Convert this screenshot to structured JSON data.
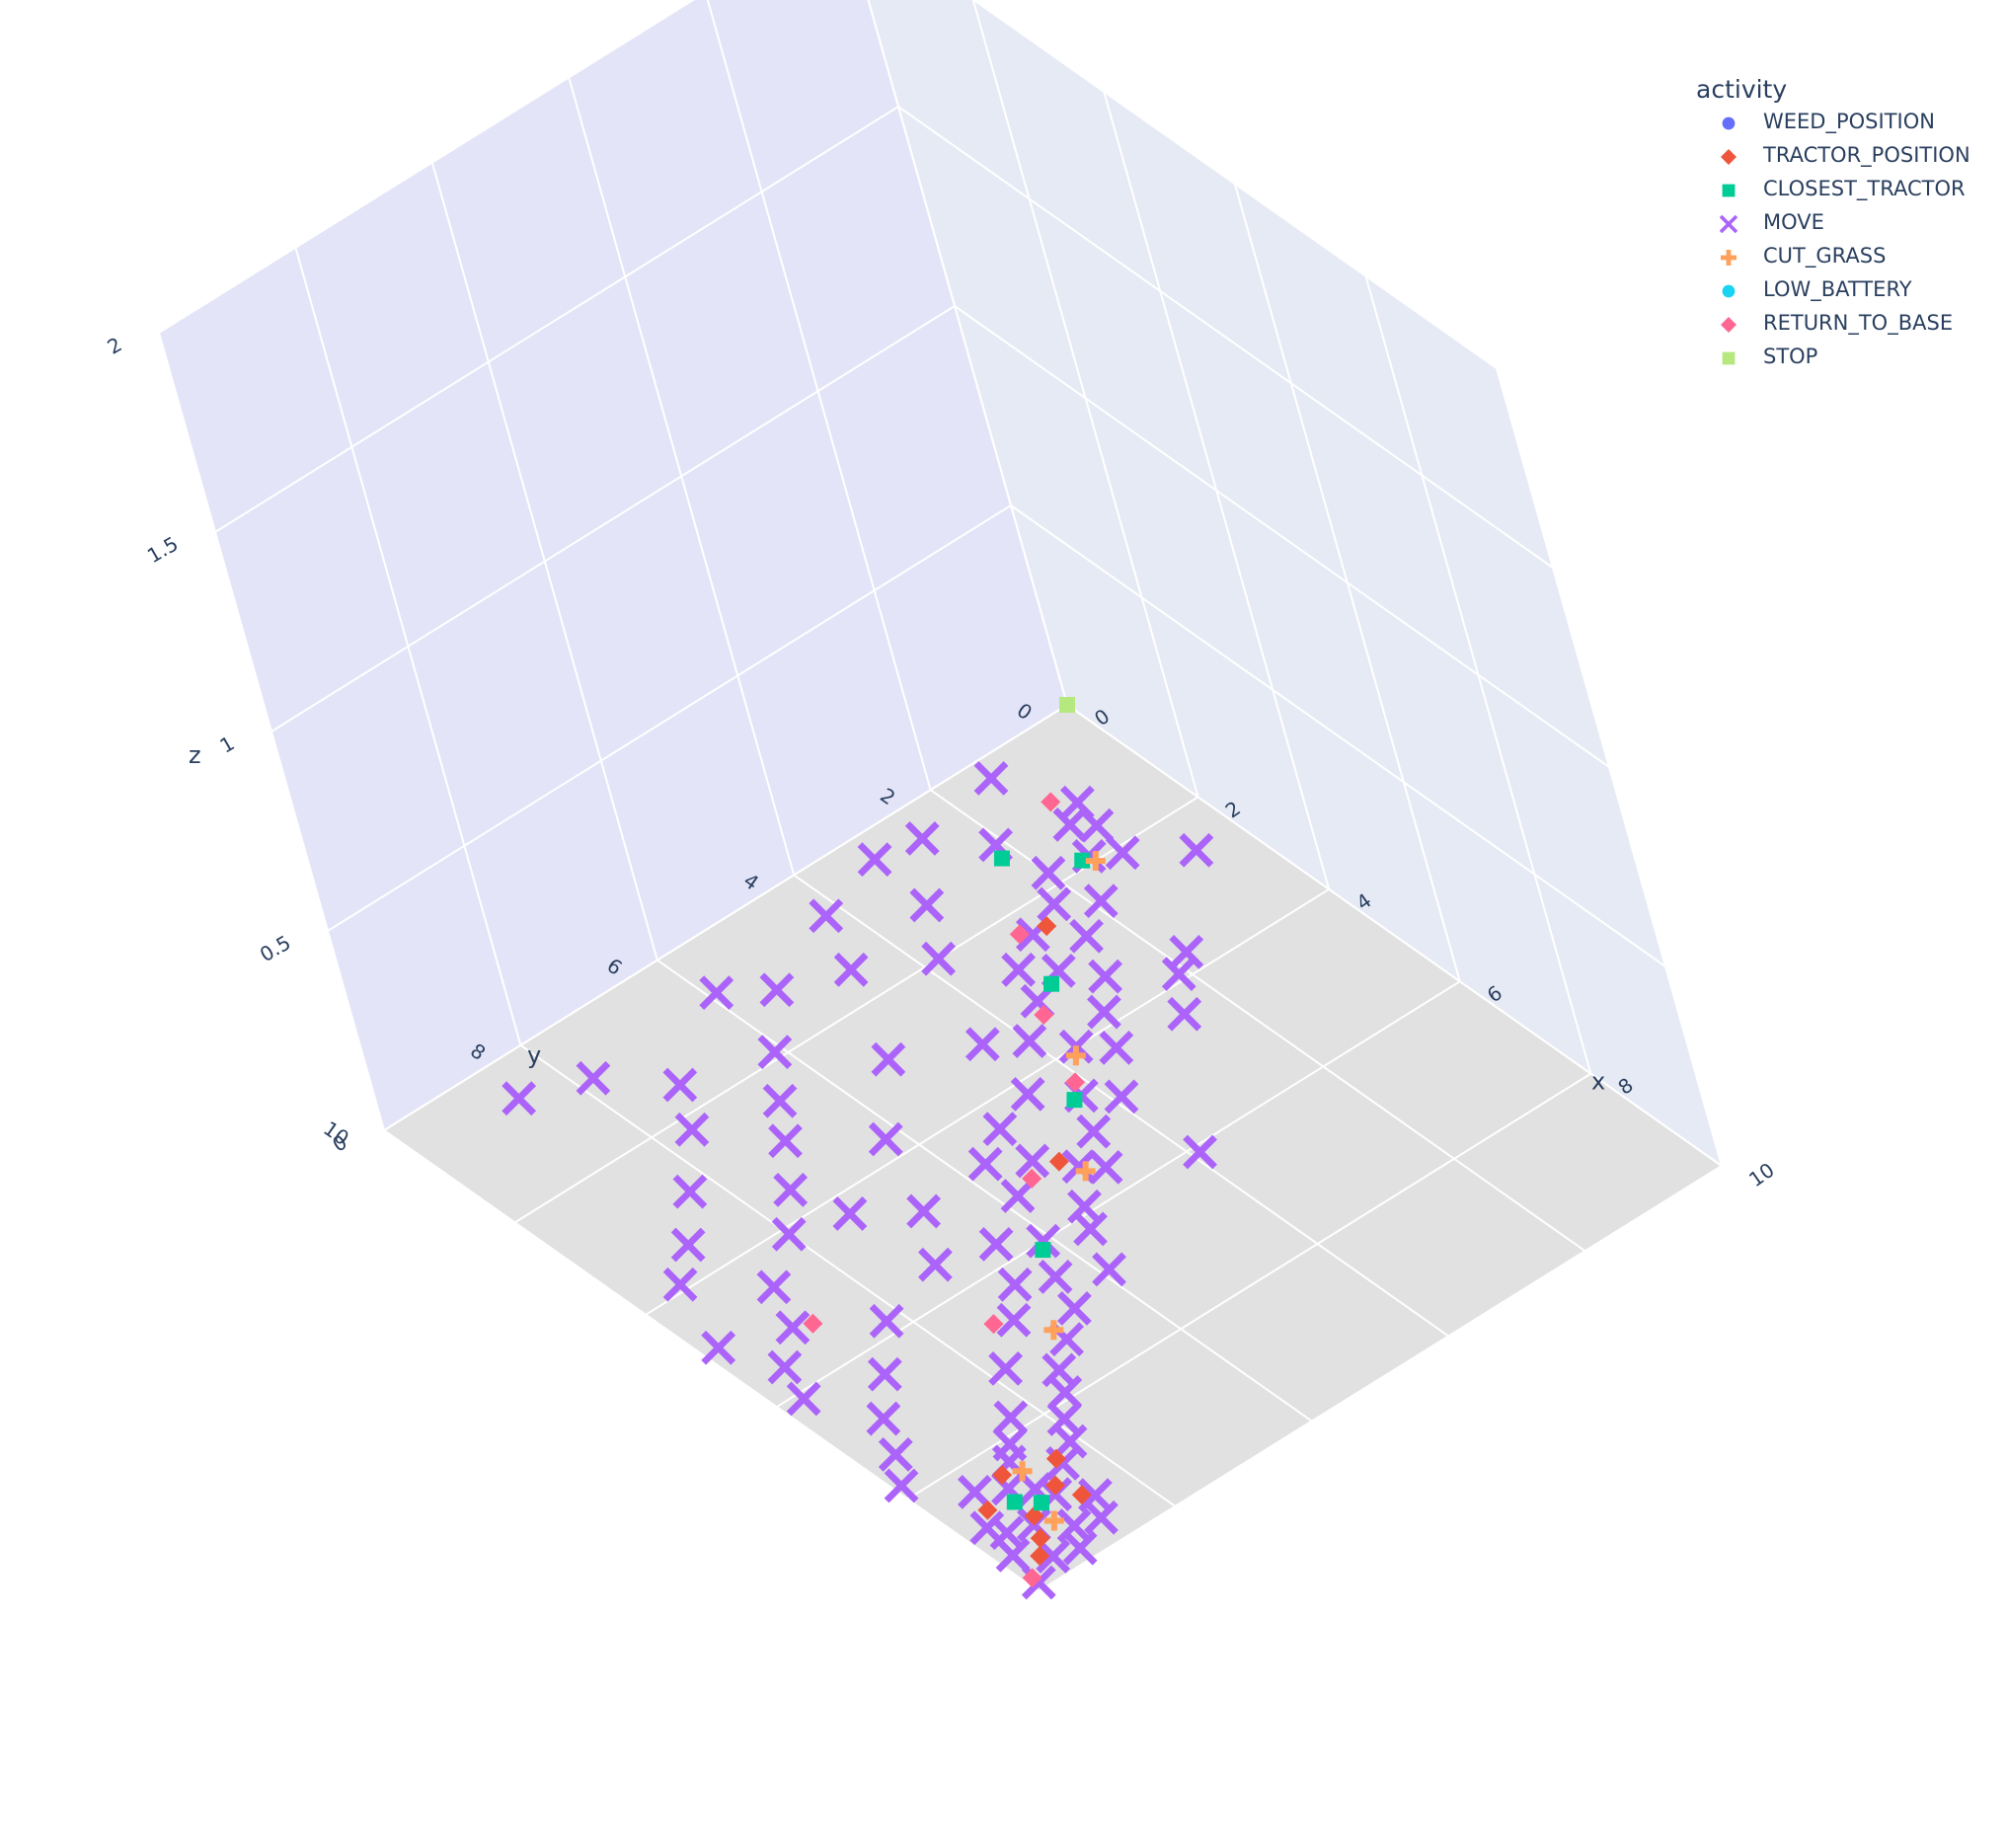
{
  "chart_data": {
    "type": "scatter3d",
    "axes": {
      "x": {
        "title": "x",
        "range": [
          0,
          10
        ],
        "ticks": [
          "0",
          "2",
          "4",
          "6",
          "8",
          "10"
        ]
      },
      "y": {
        "title": "y",
        "range": [
          0,
          10
        ],
        "ticks": [
          "0",
          "2",
          "4",
          "6",
          "8",
          "10"
        ]
      },
      "z": {
        "title": "z",
        "range": [
          0,
          2
        ],
        "ticks": [
          "0",
          "0.5",
          "1",
          "1.5",
          "2"
        ]
      }
    },
    "legend": {
      "title": "activity",
      "placement": "top-right",
      "items": [
        {
          "label": "WEED_POSITION",
          "color": "#636efa",
          "symbol": "circle"
        },
        {
          "label": "TRACTOR_POSITION",
          "color": "#EF553B",
          "symbol": "diamond"
        },
        {
          "label": "CLOSEST_TRACTOR",
          "color": "#00cc96",
          "symbol": "square"
        },
        {
          "label": "MOVE",
          "color": "#ab63fa",
          "symbol": "x"
        },
        {
          "label": "CUT_GRASS",
          "color": "#FFA15A",
          "symbol": "cross"
        },
        {
          "label": "LOW_BATTERY",
          "color": "#19d3f3",
          "symbol": "circle"
        },
        {
          "label": "RETURN_TO_BASE",
          "color": "#FF6692",
          "symbol": "diamond"
        },
        {
          "label": "STOP",
          "color": "#B6E880",
          "symbol": "square"
        }
      ]
    },
    "series": [
      {
        "name": "MOVE",
        "color": "#ab63fa",
        "points": [
          [
            1.2,
            1.0,
            0
          ],
          [
            1.4,
            1.3,
            0
          ],
          [
            1.6,
            1.1,
            0
          ],
          [
            1.9,
            1.5,
            0
          ],
          [
            2.1,
            1.2,
            0
          ],
          [
            1.8,
            2.0,
            0
          ],
          [
            2.2,
            2.3,
            0
          ],
          [
            2.5,
            1.9,
            0
          ],
          [
            2.8,
            2.4,
            0
          ],
          [
            2.4,
            2.8,
            0
          ],
          [
            1.1,
            2.1,
            0
          ],
          [
            3.0,
            3.0,
            0
          ],
          [
            3.4,
            2.7,
            0
          ],
          [
            3.2,
            3.5,
            0
          ],
          [
            2.7,
            3.3,
            0
          ],
          [
            3.8,
            3.1,
            0
          ],
          [
            4.0,
            3.7,
            0
          ],
          [
            3.6,
            4.0,
            0
          ],
          [
            4.3,
            3.4,
            0
          ],
          [
            4.6,
            4.2,
            0
          ],
          [
            4.2,
            4.6,
            0
          ],
          [
            3.3,
            4.4,
            0
          ],
          [
            4.9,
            3.9,
            0
          ],
          [
            2.0,
            3.8,
            0
          ],
          [
            5.1,
            4.5,
            0
          ],
          [
            5.4,
            5.0,
            0
          ],
          [
            5.0,
            5.3,
            0
          ],
          [
            4.7,
            5.7,
            0
          ],
          [
            5.6,
            4.8,
            0
          ],
          [
            5.9,
            5.4,
            0
          ],
          [
            5.3,
            5.8,
            0
          ],
          [
            4.4,
            5.2,
            0
          ],
          [
            6.2,
            5.6,
            0
          ],
          [
            6.0,
            6.1,
            0
          ],
          [
            6.5,
            6.4,
            0
          ],
          [
            6.8,
            5.9,
            0
          ],
          [
            6.3,
            6.8,
            0
          ],
          [
            5.7,
            6.5,
            0
          ],
          [
            7.0,
            6.6,
            0
          ],
          [
            6.7,
            7.2,
            0
          ],
          [
            7.3,
            7.0,
            0
          ],
          [
            7.6,
            7.4,
            0
          ],
          [
            7.2,
            7.8,
            0
          ],
          [
            7.9,
            7.6,
            0
          ],
          [
            8.2,
            7.9,
            0
          ],
          [
            7.8,
            8.3,
            0
          ],
          [
            8.5,
            8.1,
            0
          ],
          [
            8.1,
            8.6,
            0
          ],
          [
            8.7,
            8.4,
            0
          ],
          [
            9.0,
            8.8,
            0
          ],
          [
            8.6,
            9.1,
            0
          ],
          [
            9.2,
            9.3,
            0
          ],
          [
            9.5,
            9.0,
            0
          ],
          [
            9.1,
            9.6,
            0
          ],
          [
            9.7,
            9.5,
            0
          ],
          [
            9.4,
            9.8,
            0
          ],
          [
            8.9,
            9.7,
            0
          ],
          [
            9.8,
            9.2,
            0
          ],
          [
            8.4,
            9.4,
            0
          ],
          [
            9.3,
            8.5,
            0
          ],
          [
            8.8,
            8.9,
            0
          ],
          [
            9.6,
            8.7,
            0
          ],
          [
            8.3,
            8.8,
            0
          ],
          [
            9.9,
            9.9,
            0
          ],
          [
            1.5,
            4.6,
            0
          ],
          [
            1.2,
            5.4,
            0
          ],
          [
            0.8,
            5.9,
            0
          ],
          [
            1.9,
            6.1,
            0
          ],
          [
            2.5,
            6.6,
            0
          ],
          [
            3.0,
            7.0,
            0
          ],
          [
            3.6,
            7.5,
            0
          ],
          [
            4.1,
            8.0,
            0
          ],
          [
            2.2,
            7.6,
            0
          ],
          [
            1.6,
            7.2,
            0
          ],
          [
            0.9,
            7.8,
            0
          ],
          [
            0.6,
            8.6,
            0
          ],
          [
            2.9,
            8.3,
            0
          ],
          [
            3.5,
            8.9,
            0
          ],
          [
            4.6,
            8.7,
            0
          ],
          [
            3.9,
            9.4,
            0
          ],
          [
            5.2,
            9.0,
            0
          ],
          [
            5.6,
            9.5,
            0
          ],
          [
            4.9,
            9.8,
            0
          ],
          [
            0.4,
            3.2,
            0
          ],
          [
            0.7,
            4.2,
            0
          ],
          [
            5.8,
            8.2,
            0
          ],
          [
            6.4,
            8.8,
            0
          ],
          [
            6.9,
            9.3,
            0
          ],
          [
            7.4,
            9.6,
            0
          ],
          [
            7.8,
            9.9,
            0
          ],
          [
            6.1,
            9.7,
            0
          ],
          [
            5.5,
            7.2,
            0
          ],
          [
            4.8,
            6.7,
            0
          ],
          [
            3.7,
            6.2,
            0
          ],
          [
            4.3,
            7.3,
            0
          ],
          [
            2.8,
            5.3,
            0
          ],
          [
            0.3,
            1.4,
            0
          ],
          [
            0.5,
            2.6,
            0
          ],
          [
            2.6,
            0.6,
            0
          ],
          [
            3.7,
            1.8,
            0
          ],
          [
            4.4,
            2.5,
            0
          ],
          [
            3.9,
            2.1,
            0
          ],
          [
            1.3,
            3.3,
            0
          ],
          [
            6.1,
            3.9,
            0
          ]
        ]
      },
      {
        "name": "TRACTOR_POSITION",
        "color": "#EF553B",
        "points": [
          [
            8.6,
            8.4,
            0
          ],
          [
            9.1,
            9.2,
            0
          ],
          [
            8.9,
            8.7,
            0
          ],
          [
            9.4,
            9.4,
            0
          ],
          [
            8.7,
            9.5,
            0
          ],
          [
            9.2,
            8.6,
            0
          ],
          [
            8.4,
            9.0,
            0
          ],
          [
            9.6,
            9.6,
            0
          ],
          [
            2.4,
            2.6,
            0
          ],
          [
            5.2,
            5.1,
            0
          ]
        ]
      },
      {
        "name": "CLOSEST_TRACTOR",
        "color": "#00cc96",
        "points": [
          [
            1.9,
            1.6,
            0
          ],
          [
            3.1,
            3.2,
            0
          ],
          [
            4.6,
            4.3,
            0
          ],
          [
            9.0,
            9.0,
            0
          ],
          [
            8.8,
            9.2,
            0
          ],
          [
            6.1,
            6.2,
            0
          ],
          [
            1.3,
            2.2,
            0
          ]
        ]
      },
      {
        "name": "CUT_GRASS",
        "color": "#FFA15A",
        "points": [
          [
            2.0,
            1.5,
            0
          ],
          [
            4.1,
            3.8,
            0
          ],
          [
            5.5,
            5.0,
            0
          ],
          [
            7.1,
            7.0,
            0
          ],
          [
            9.3,
            9.1,
            0
          ],
          [
            8.5,
            8.8,
            0
          ]
        ]
      },
      {
        "name": "RETURN_TO_BASE",
        "color": "#FF6692",
        "points": [
          [
            1.0,
            1.2,
            0
          ],
          [
            2.3,
            2.9,
            0
          ],
          [
            3.4,
            3.6,
            0
          ],
          [
            4.4,
            4.1,
            0
          ],
          [
            5.2,
            5.5,
            0
          ],
          [
            6.6,
            7.4,
            0
          ],
          [
            9.8,
            9.9,
            0
          ],
          [
            5.3,
            8.8,
            0
          ]
        ]
      },
      {
        "name": "STOP",
        "color": "#B6E880",
        "points": [
          [
            0.0,
            0.0,
            0.0
          ]
        ]
      }
    ]
  }
}
